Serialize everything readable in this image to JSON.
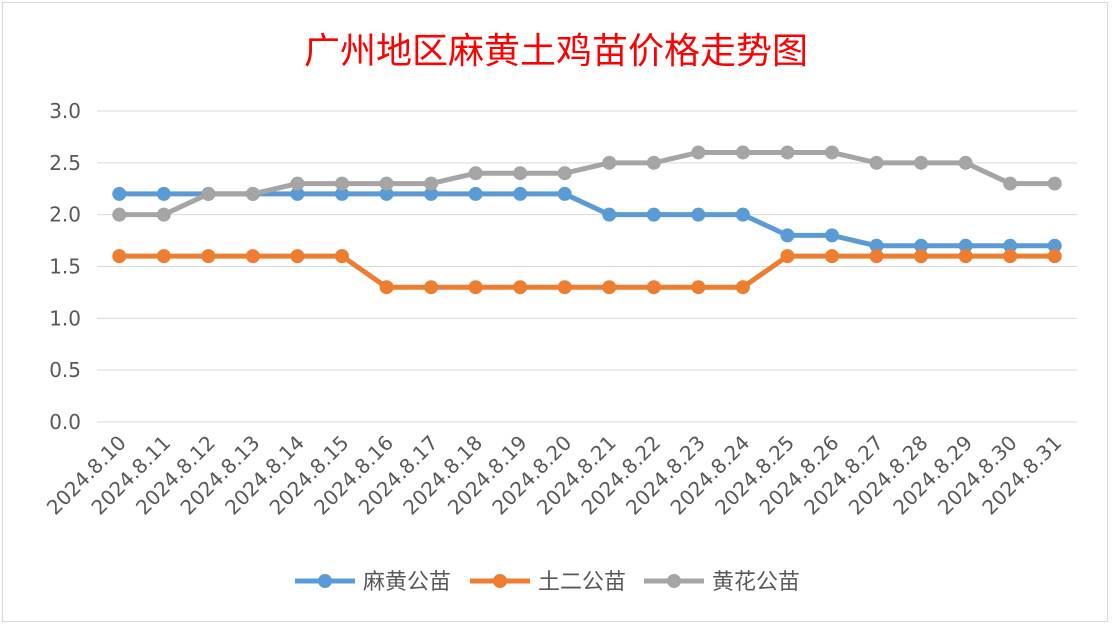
{
  "chart_data": {
    "type": "line",
    "title": "广州地区麻黄土鸡苗价格走势图",
    "x": [
      "2024.8.10",
      "2024.8.11",
      "2024.8.12",
      "2024.8.13",
      "2024.8.14",
      "2024.8.15",
      "2024.8.16",
      "2024.8.17",
      "2024.8.18",
      "2024.8.19",
      "2024.8.20",
      "2024.8.21",
      "2024.8.22",
      "2024.8.23",
      "2024.8.24",
      "2024.8.25",
      "2024.8.26",
      "2024.8.27",
      "2024.8.28",
      "2024.8.29",
      "2024.8.30",
      "2024.8.31"
    ],
    "series": [
      {
        "name": "麻黄公苗",
        "color": "#5b9bd5",
        "values": [
          2.2,
          2.2,
          2.2,
          2.2,
          2.2,
          2.2,
          2.2,
          2.2,
          2.2,
          2.2,
          2.2,
          2.0,
          2.0,
          2.0,
          2.0,
          1.8,
          1.8,
          1.7,
          1.7,
          1.7,
          1.7,
          1.7
        ]
      },
      {
        "name": "土二公苗",
        "color": "#ed7d31",
        "values": [
          1.6,
          1.6,
          1.6,
          1.6,
          1.6,
          1.6,
          1.3,
          1.3,
          1.3,
          1.3,
          1.3,
          1.3,
          1.3,
          1.3,
          1.3,
          1.6,
          1.6,
          1.6,
          1.6,
          1.6,
          1.6,
          1.6
        ]
      },
      {
        "name": "黄花公苗",
        "color": "#a5a5a5",
        "values": [
          2.0,
          2.0,
          2.2,
          2.2,
          2.3,
          2.3,
          2.3,
          2.3,
          2.4,
          2.4,
          2.4,
          2.5,
          2.5,
          2.6,
          2.6,
          2.6,
          2.6,
          2.5,
          2.5,
          2.5,
          2.3,
          2.3
        ]
      }
    ],
    "yticks": [
      "0.0",
      "0.5",
      "1.0",
      "1.5",
      "2.0",
      "2.5",
      "3.0"
    ],
    "ylim": [
      0,
      3.0
    ],
    "xlabel": "",
    "ylabel": "",
    "grid": true,
    "legend_position": "bottom"
  }
}
